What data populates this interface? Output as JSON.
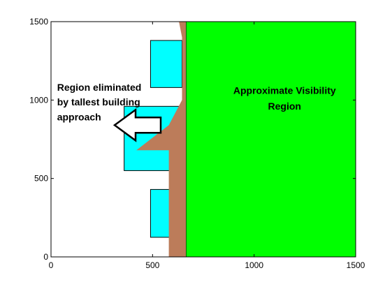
{
  "chart_data": {
    "type": "area",
    "xlim": [
      0,
      1500
    ],
    "ylim": [
      0,
      1500
    ],
    "x_ticks": [
      {
        "value": 0,
        "label": "0"
      },
      {
        "value": 500,
        "label": "500"
      },
      {
        "value": 1000,
        "label": "1000"
      },
      {
        "value": 1500,
        "label": "1500"
      }
    ],
    "y_ticks": [
      {
        "value": 0,
        "label": "0"
      },
      {
        "value": 500,
        "label": "500"
      },
      {
        "value": 1000,
        "label": "1000"
      },
      {
        "value": 1500,
        "label": "1500"
      }
    ],
    "grid": false,
    "buildings": [
      {
        "x0": 490,
        "x1": 645,
        "y0": 1080,
        "y1": 1380,
        "color": "#00ffff"
      },
      {
        "x0": 360,
        "x1": 645,
        "y0": 550,
        "y1": 960,
        "color": "#00ffff"
      },
      {
        "x0": 490,
        "x1": 645,
        "y0": 125,
        "y1": 430,
        "color": "#00ffff"
      }
    ],
    "eliminated_region": {
      "color": "#bc7c5a",
      "polygon": [
        [
          580,
          0
        ],
        [
          580,
          540
        ],
        [
          580,
          680
        ],
        [
          560,
          680
        ],
        [
          420,
          680
        ],
        [
          580,
          840
        ],
        [
          645,
          1000
        ],
        [
          645,
          1400
        ],
        [
          630,
          1500
        ],
        [
          665,
          1500
        ],
        [
          665,
          0
        ]
      ]
    },
    "visibility_region": {
      "color": "#00ff00",
      "x0": 665,
      "x1": 1500,
      "y0": 0,
      "y1": 1500
    },
    "annotations": [
      {
        "id": "eliminated",
        "lines": [
          "Region eliminated",
          "by tallest building",
          "approach"
        ],
        "x": 30,
        "y": 1060,
        "line_step": 95
      },
      {
        "id": "visibility",
        "lines": [
          "Approximate Visibility",
          "Region"
        ],
        "x": 1150,
        "y": 1040,
        "line_step": 100,
        "anchor": "middle"
      }
    ],
    "arrow": {
      "tip": [
        540,
        840
      ],
      "color": "#000000"
    }
  }
}
